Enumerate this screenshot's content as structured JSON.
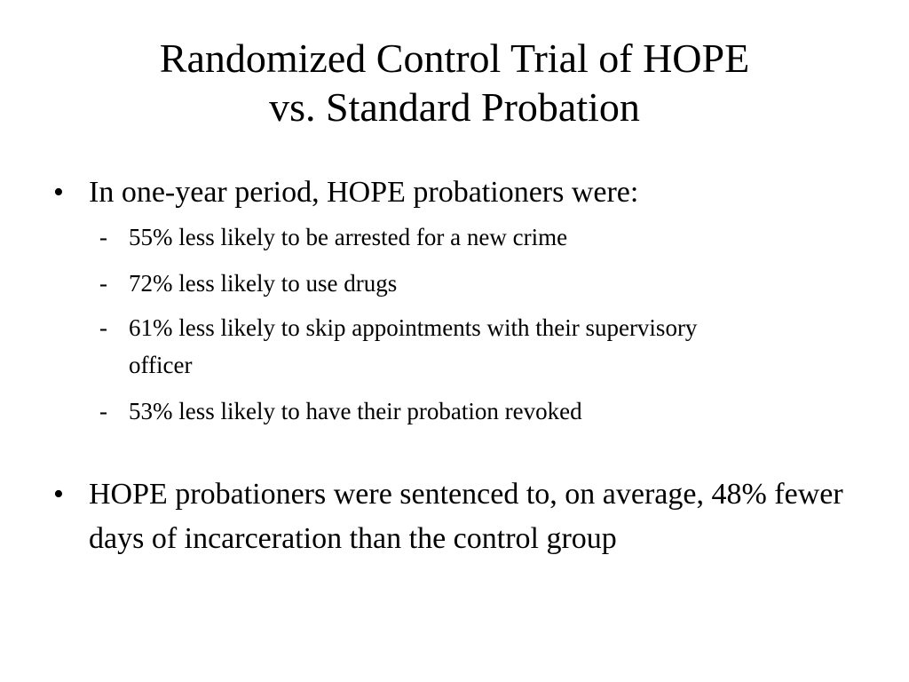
{
  "slide": {
    "title_line_1": "Randomized Control Trial of HOPE",
    "title_line_2": "vs. Standard Probation",
    "bullets": [
      {
        "marker": "•",
        "text": "In one-year period, HOPE probationers were:",
        "sub_items": [
          {
            "marker": "-",
            "text": "55% less likely to be arrested for a new crime"
          },
          {
            "marker": "-",
            "text": "72% less likely to use drugs"
          },
          {
            "marker": "-",
            "text": "61% less likely to skip appointments with their supervisory officer"
          },
          {
            "marker": "-",
            "text": "53% less likely to have their probation revoked"
          }
        ]
      },
      {
        "marker": "•",
        "text": "HOPE probationers were sentenced to, on average, 48% fewer days of incarceration than the control group"
      }
    ]
  }
}
